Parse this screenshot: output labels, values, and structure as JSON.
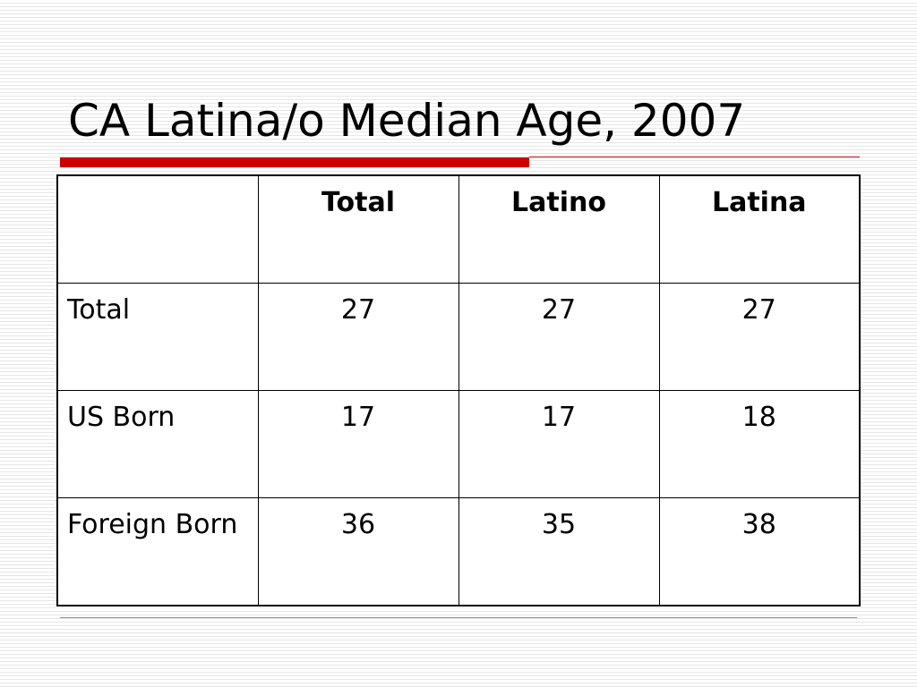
{
  "slide": {
    "title": "CA Latina/o Median Age, 2007"
  },
  "table": {
    "header": [
      "",
      "Total",
      "Latino",
      "Latina"
    ],
    "rows": [
      {
        "label": "Total",
        "values": [
          "27",
          "27",
          "27"
        ]
      },
      {
        "label": "US Born",
        "values": [
          "17",
          "17",
          "18"
        ]
      },
      {
        "label": "Foreign Born",
        "values": [
          "36",
          "35",
          "38"
        ]
      }
    ]
  },
  "colors": {
    "accent": "#cc0000",
    "text": "#000000",
    "background": "#ffffff",
    "stripe": "#e6e6e6"
  }
}
